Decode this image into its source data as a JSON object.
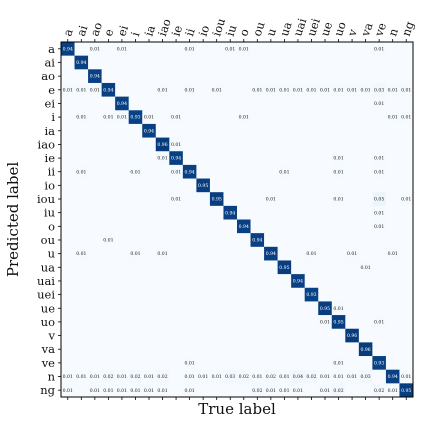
{
  "chart_data": {
    "type": "heatmap",
    "xlabel": "True label",
    "ylabel": "Predicted label",
    "x_labels": [
      "a",
      "ai",
      "ao",
      "e",
      "ei",
      "i",
      "ia",
      "iao",
      "ie",
      "ii",
      "io",
      "iou",
      "iu",
      "o",
      "ou",
      "u",
      "ua",
      "uai",
      "uei",
      "ue",
      "uo",
      "v",
      "va",
      "ve",
      "n",
      "ng"
    ],
    "y_labels": [
      "a",
      "ai",
      "ao",
      "e",
      "ei",
      "i",
      "ia",
      "iao",
      "ie",
      "ii",
      "io",
      "iou",
      "iu",
      "o",
      "ou",
      "u",
      "ua",
      "uai",
      "uei",
      "ue",
      "uo",
      "v",
      "va",
      "ve",
      "n",
      "ng"
    ],
    "colormap": "Blues",
    "value_range": [
      0,
      1
    ],
    "grid": false,
    "values": [
      [
        0.94,
        0,
        0.01,
        0,
        0.01,
        0,
        0,
        0,
        0,
        0.01,
        0,
        0,
        0.01,
        0.01,
        0,
        0,
        0,
        0,
        0,
        0,
        0,
        0,
        0,
        0.01,
        0,
        0
      ],
      [
        0,
        0.94,
        0,
        0,
        0,
        0,
        0,
        0,
        0,
        0,
        0,
        0,
        0,
        0,
        0,
        0,
        0,
        0,
        0,
        0,
        0,
        0,
        0,
        0,
        0,
        0
      ],
      [
        0,
        0,
        0.94,
        0,
        0,
        0,
        0,
        0,
        0,
        0,
        0,
        0,
        0,
        0,
        0,
        0,
        0,
        0,
        0,
        0,
        0,
        0,
        0,
        0,
        0,
        0
      ],
      [
        0.01,
        0.01,
        0.01,
        0.94,
        0,
        0,
        0,
        0.01,
        0,
        0.01,
        0,
        0.01,
        0,
        0,
        0.01,
        0.01,
        0.01,
        0.01,
        0.01,
        0.01,
        0.01,
        0.01,
        0.01,
        0.03,
        0.01,
        0.01
      ],
      [
        0,
        0,
        0,
        0,
        0.94,
        0,
        0,
        0,
        0,
        0,
        0,
        0,
        0,
        0,
        0,
        0,
        0,
        0,
        0,
        0,
        0,
        0,
        0,
        0.01,
        0,
        0
      ],
      [
        0,
        0.01,
        0,
        0.01,
        0.01,
        0.93,
        0.01,
        0,
        0.01,
        0,
        0,
        0,
        0,
        0.01,
        0,
        0,
        0,
        0,
        0,
        0,
        0,
        0,
        0,
        0,
        0.01,
        0.01
      ],
      [
        0,
        0,
        0,
        0,
        0,
        0,
        0.94,
        0,
        0,
        0,
        0,
        0,
        0,
        0,
        0,
        0,
        0,
        0,
        0,
        0,
        0,
        0,
        0,
        0,
        0,
        0
      ],
      [
        0,
        0,
        0,
        0,
        0,
        0,
        0,
        0.96,
        0.01,
        0,
        0,
        0,
        0,
        0,
        0,
        0,
        0,
        0,
        0,
        0,
        0,
        0,
        0,
        0,
        0,
        0
      ],
      [
        0,
        0,
        0,
        0,
        0,
        0,
        0,
        0.01,
        0.94,
        0,
        0,
        0,
        0,
        0,
        0,
        0,
        0,
        0,
        0,
        0,
        0.01,
        0,
        0,
        0.01,
        0,
        0
      ],
      [
        0,
        0.01,
        0,
        0,
        0,
        0.01,
        0,
        0,
        0.01,
        0.94,
        0,
        0,
        0,
        0,
        0,
        0,
        0.01,
        0,
        0,
        0,
        0.01,
        0,
        0,
        0.01,
        0,
        0
      ],
      [
        0,
        0,
        0,
        0,
        0,
        0,
        0,
        0,
        0,
        0,
        0.95,
        0,
        0,
        0,
        0,
        0,
        0,
        0,
        0,
        0,
        0,
        0,
        0,
        0,
        0,
        0
      ],
      [
        0,
        0,
        0,
        0,
        0,
        0,
        0,
        0,
        0.01,
        0,
        0,
        0.95,
        0,
        0,
        0,
        0.01,
        0,
        0,
        0,
        0,
        0.01,
        0,
        0,
        0.05,
        0,
        0.01
      ],
      [
        0,
        0,
        0,
        0,
        0,
        0,
        0,
        0,
        0,
        0,
        0,
        0,
        0.94,
        0,
        0,
        0,
        0,
        0,
        0,
        0,
        0,
        0,
        0,
        0.01,
        0,
        0
      ],
      [
        0,
        0,
        0,
        0,
        0,
        0,
        0,
        0,
        0,
        0,
        0,
        0,
        0,
        0.94,
        0,
        0,
        0,
        0,
        0,
        0,
        0,
        0,
        0,
        0.01,
        0,
        0
      ],
      [
        0,
        0,
        0,
        0.01,
        0,
        0,
        0,
        0,
        0,
        0,
        0,
        0,
        0,
        0,
        0.94,
        0,
        0,
        0,
        0,
        0,
        0,
        0,
        0,
        0,
        0,
        0
      ],
      [
        0,
        0.01,
        0,
        0,
        0,
        0.01,
        0,
        0.01,
        0,
        0,
        0,
        0,
        0,
        0,
        0,
        0.94,
        0,
        0,
        0.01,
        0,
        0,
        0.01,
        0,
        0,
        0.01,
        0
      ],
      [
        0,
        0,
        0,
        0,
        0,
        0,
        0,
        0,
        0,
        0,
        0,
        0,
        0,
        0,
        0,
        0,
        0.95,
        0,
        0,
        0,
        0,
        0,
        0.01,
        0,
        0,
        0
      ],
      [
        0,
        0,
        0,
        0,
        0,
        0,
        0,
        0,
        0,
        0,
        0,
        0,
        0,
        0,
        0,
        0,
        0,
        0.94,
        0,
        0,
        0,
        0,
        0,
        0,
        0,
        0
      ],
      [
        0,
        0,
        0,
        0,
        0,
        0,
        0,
        0,
        0,
        0,
        0,
        0,
        0,
        0,
        0,
        0,
        0,
        0,
        0.93,
        0,
        0,
        0,
        0,
        0,
        0,
        0
      ],
      [
        0,
        0,
        0,
        0,
        0,
        0,
        0,
        0,
        0,
        0,
        0,
        0,
        0,
        0,
        0,
        0,
        0,
        0,
        0,
        0.95,
        0.01,
        0,
        0,
        0,
        0,
        0
      ],
      [
        0,
        0,
        0,
        0,
        0,
        0,
        0,
        0,
        0,
        0,
        0,
        0,
        0,
        0,
        0,
        0,
        0,
        0,
        0,
        0.01,
        0.95,
        0,
        0,
        0.01,
        0,
        0
      ],
      [
        0,
        0,
        0,
        0,
        0,
        0,
        0,
        0,
        0,
        0,
        0,
        0,
        0,
        0,
        0,
        0,
        0,
        0,
        0,
        0,
        0,
        0.96,
        0,
        0,
        0,
        0
      ],
      [
        0,
        0,
        0,
        0,
        0,
        0,
        0,
        0,
        0,
        0,
        0,
        0,
        0,
        0,
        0,
        0,
        0,
        0,
        0,
        0,
        0,
        0,
        0.96,
        0,
        0,
        0
      ],
      [
        0,
        0,
        0,
        0,
        0,
        0,
        0,
        0,
        0,
        0.01,
        0,
        0,
        0,
        0,
        0,
        0,
        0,
        0,
        0,
        0,
        0.01,
        0,
        0,
        0.93,
        0,
        0
      ],
      [
        0.01,
        0.01,
        0.01,
        0.02,
        0.01,
        0.02,
        0.01,
        0.02,
        0,
        0.01,
        0.01,
        0.01,
        0.03,
        0.02,
        0.01,
        0.02,
        0.01,
        0.04,
        0.02,
        0.01,
        0.01,
        0.01,
        0.03,
        0,
        0.94,
        0.01
      ],
      [
        0.01,
        0,
        0.01,
        0.01,
        0.01,
        0.01,
        0.01,
        0.01,
        0,
        0.01,
        0,
        0,
        0,
        0,
        0.02,
        0.01,
        0.01,
        0.01,
        0,
        0.01,
        0.02,
        0,
        0,
        0.02,
        0.01,
        0.95
      ]
    ]
  }
}
